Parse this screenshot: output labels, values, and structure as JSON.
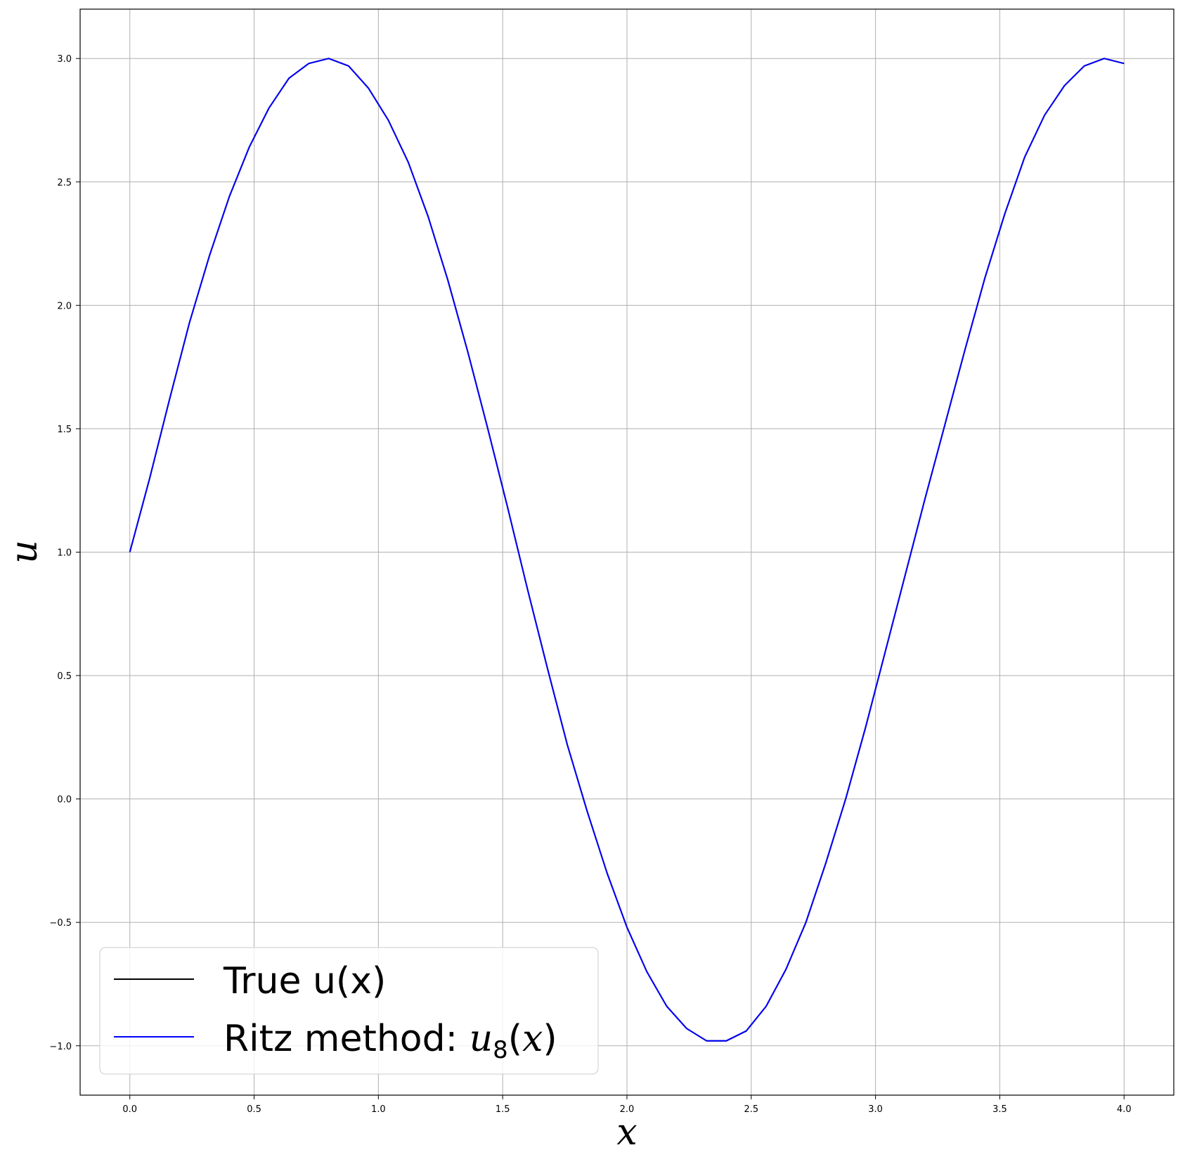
{
  "chart_data": {
    "type": "line",
    "xlabel": "x",
    "ylabel": "u",
    "xlim": [
      -0.2,
      4.2
    ],
    "ylim": [
      -1.2,
      3.2
    ],
    "xticks": [
      0.0,
      0.5,
      1.0,
      1.5,
      2.0,
      2.5,
      3.0,
      3.5,
      4.0
    ],
    "xtick_labels": [
      "0.0",
      "0.5",
      "1.0",
      "1.5",
      "2.0",
      "2.5",
      "3.0",
      "3.5",
      "4.0"
    ],
    "yticks": [
      -1.0,
      -0.5,
      0.0,
      0.5,
      1.0,
      1.5,
      2.0,
      2.5,
      3.0
    ],
    "ytick_labels": [
      "−1.0",
      "−0.5",
      "0.0",
      "0.5",
      "1.0",
      "1.5",
      "2.0",
      "2.5",
      "3.0"
    ],
    "grid": true,
    "legend_position": "lower-left",
    "series": [
      {
        "name": "True u(x)",
        "color": "#000000",
        "x": [
          0.0,
          0.08,
          0.16,
          0.24,
          0.32,
          0.4,
          0.48,
          0.56,
          0.64,
          0.72,
          0.8,
          0.88,
          0.96,
          1.04,
          1.12,
          1.2,
          1.28,
          1.36,
          1.44,
          1.52,
          1.6,
          1.68,
          1.76,
          1.84,
          1.92,
          2.0,
          2.08,
          2.16,
          2.24,
          2.32,
          2.4,
          2.48,
          2.56,
          2.64,
          2.72,
          2.8,
          2.88,
          2.96,
          3.04,
          3.12,
          3.2,
          3.28,
          3.36,
          3.44,
          3.52,
          3.6,
          3.68,
          3.76,
          3.84,
          3.92,
          4.0
        ],
        "y": [
          1.0,
          1.3,
          1.62,
          1.93,
          2.2,
          2.44,
          2.64,
          2.8,
          2.92,
          2.98,
          3.0,
          2.97,
          2.88,
          2.75,
          2.58,
          2.36,
          2.1,
          1.81,
          1.5,
          1.18,
          0.85,
          0.53,
          0.22,
          -0.05,
          -0.3,
          -0.52,
          -0.7,
          -0.84,
          -0.93,
          -0.98,
          -0.98,
          -0.94,
          -0.84,
          -0.69,
          -0.5,
          -0.26,
          0.0,
          0.29,
          0.6,
          0.91,
          1.22,
          1.52,
          1.82,
          2.11,
          2.37,
          2.6,
          2.77,
          2.89,
          2.97,
          3.0,
          2.98
        ]
      },
      {
        "name": "Ritz method: u₈(x)",
        "color": "#0000ff",
        "x": [
          0.0,
          0.08,
          0.16,
          0.24,
          0.32,
          0.4,
          0.48,
          0.56,
          0.64,
          0.72,
          0.8,
          0.88,
          0.96,
          1.04,
          1.12,
          1.2,
          1.28,
          1.36,
          1.44,
          1.52,
          1.6,
          1.68,
          1.76,
          1.84,
          1.92,
          2.0,
          2.08,
          2.16,
          2.24,
          2.32,
          2.4,
          2.48,
          2.56,
          2.64,
          2.72,
          2.8,
          2.88,
          2.96,
          3.04,
          3.12,
          3.2,
          3.28,
          3.36,
          3.44,
          3.52,
          3.6,
          3.68,
          3.76,
          3.84,
          3.92,
          4.0
        ],
        "y": [
          1.0,
          1.3,
          1.62,
          1.93,
          2.2,
          2.44,
          2.64,
          2.8,
          2.92,
          2.98,
          3.0,
          2.97,
          2.88,
          2.75,
          2.58,
          2.36,
          2.1,
          1.81,
          1.5,
          1.18,
          0.85,
          0.53,
          0.22,
          -0.05,
          -0.3,
          -0.52,
          -0.7,
          -0.84,
          -0.93,
          -0.98,
          -0.98,
          -0.94,
          -0.84,
          -0.69,
          -0.5,
          -0.26,
          0.0,
          0.29,
          0.6,
          0.91,
          1.22,
          1.52,
          1.82,
          2.11,
          2.37,
          2.6,
          2.77,
          2.89,
          2.97,
          3.0,
          2.98
        ]
      }
    ],
    "legend": {
      "true_label": "True u(x)",
      "ritz_prefix": "Ritz method: ",
      "ritz_u": "u",
      "ritz_sub": "8",
      "ritz_open": "(",
      "ritz_x": "x",
      "ritz_close": ")"
    }
  }
}
